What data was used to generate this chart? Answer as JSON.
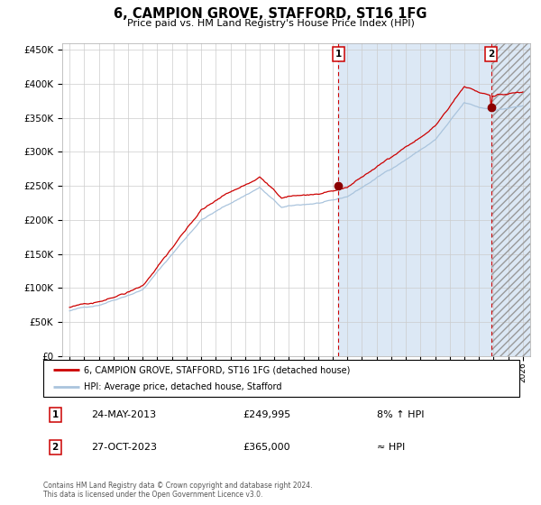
{
  "title": "6, CAMPION GROVE, STAFFORD, ST16 1FG",
  "subtitle": "Price paid vs. HM Land Registry's House Price Index (HPI)",
  "sale1_date": "24-MAY-2013",
  "sale1_price": 249995,
  "sale1_label": "8% ↑ HPI",
  "sale1_x": 2013.38,
  "sale2_date": "27-OCT-2023",
  "sale2_price": 365000,
  "sale2_label": "≈ HPI",
  "sale2_x": 2023.82,
  "legend_line1": "6, CAMPION GROVE, STAFFORD, ST16 1FG (detached house)",
  "legend_line2": "HPI: Average price, detached house, Stafford",
  "footer": "Contains HM Land Registry data © Crown copyright and database right 2024.\nThis data is licensed under the Open Government Licence v3.0.",
  "hpi_color": "#aac4dd",
  "price_color": "#cc0000",
  "dot_color": "#8b0000",
  "vline_color": "#cc0000",
  "bg_shaded_color": "#dce8f5",
  "grid_color": "#cccccc",
  "ylim": [
    0,
    460000
  ],
  "xlim": [
    1994.5,
    2026.5
  ],
  "sale1_hpi_value": 231000,
  "sale2_hpi_value": 362000,
  "xtick_start": 1995,
  "xtick_end": 2026,
  "yticks": [
    0,
    50000,
    100000,
    150000,
    200000,
    250000,
    300000,
    350000,
    400000,
    450000
  ]
}
